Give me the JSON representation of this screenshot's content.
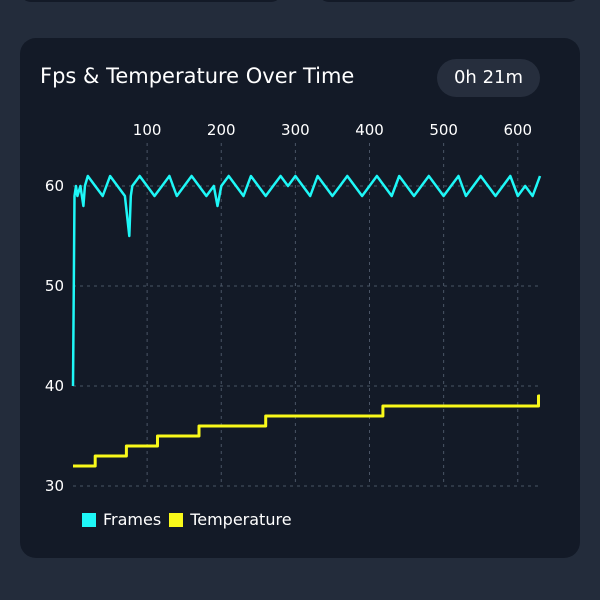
{
  "card": {
    "title": "Fps & Temperature Over Time",
    "duration": "0h 21m"
  },
  "colors": {
    "frames": "#1ef7f7",
    "temperature": "#f9f91a",
    "background": "#131a27",
    "grid": "#4a5566"
  },
  "chart_data": {
    "type": "line",
    "x_ticks": [
      100,
      200,
      300,
      400,
      500,
      600
    ],
    "y_ticks": [
      30,
      40,
      50,
      60
    ],
    "xlim": [
      0,
      630
    ],
    "ylim": [
      30,
      62
    ],
    "grid": true,
    "legend_position": "bottom-left",
    "series": [
      {
        "name": "Frames",
        "color": "#1ef7f7",
        "x": [
          0,
          2,
          4,
          6,
          10,
          14,
          16,
          20,
          30,
          40,
          50,
          60,
          70,
          76,
          78,
          80,
          90,
          100,
          110,
          120,
          130,
          140,
          150,
          160,
          170,
          180,
          190,
          195,
          200,
          210,
          220,
          230,
          240,
          250,
          260,
          270,
          280,
          290,
          300,
          310,
          320,
          330,
          340,
          350,
          360,
          370,
          380,
          390,
          400,
          410,
          420,
          430,
          440,
          450,
          460,
          470,
          480,
          490,
          500,
          510,
          520,
          530,
          540,
          550,
          560,
          570,
          580,
          590,
          600,
          610,
          620,
          630
        ],
        "y": [
          40,
          59,
          60,
          59,
          60,
          58,
          60,
          61,
          60,
          59,
          61,
          60,
          59,
          55,
          59,
          60,
          61,
          60,
          59,
          60,
          61,
          59,
          60,
          61,
          60,
          59,
          60,
          58,
          60,
          61,
          60,
          59,
          61,
          60,
          59,
          60,
          61,
          60,
          61,
          60,
          59,
          61,
          60,
          59,
          60,
          61,
          60,
          59,
          60,
          61,
          60,
          59,
          61,
          60,
          59,
          60,
          61,
          60,
          59,
          60,
          61,
          59,
          60,
          61,
          60,
          59,
          60,
          61,
          59,
          60,
          59,
          61
        ]
      },
      {
        "name": "Temperature",
        "color": "#f9f91a",
        "x": [
          0,
          30,
          30,
          72,
          72,
          114,
          114,
          170,
          170,
          260,
          260,
          418,
          418,
          628,
          628,
          630
        ],
        "y": [
          32,
          32,
          33,
          33,
          34,
          34,
          35,
          35,
          36,
          36,
          37,
          37,
          38,
          38,
          39,
          39
        ]
      }
    ]
  }
}
